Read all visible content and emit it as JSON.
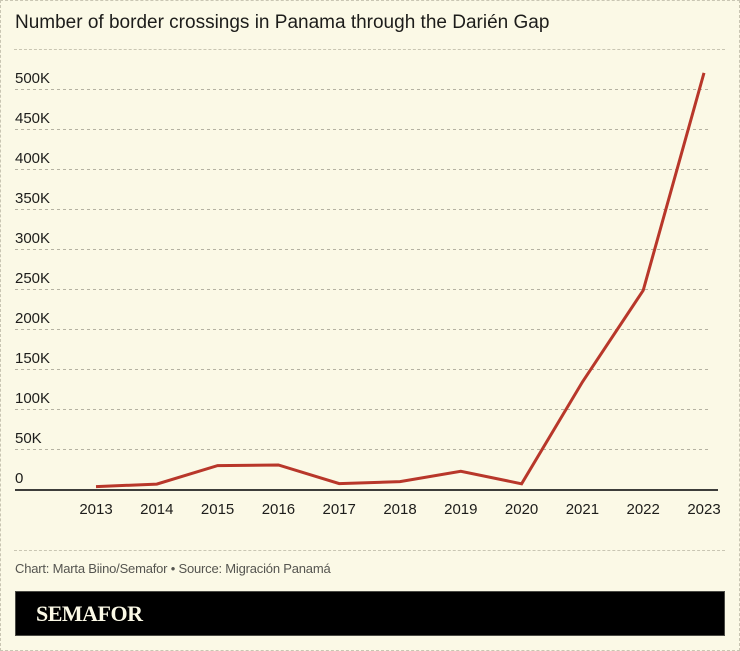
{
  "header": {
    "title": "Number of border crossings in Panama through the Darién Gap"
  },
  "footer": {
    "credit": "Chart: Marta Biino/Semafor • Source: Migración Panamá",
    "brand": "SEMAFOR"
  },
  "colors": {
    "line": "#b8372a",
    "background": "#fbf9e6",
    "grid": "#b5b2a2",
    "axis": "#3d3d3a",
    "text": "#1d1d1b"
  },
  "chart_data": {
    "type": "line",
    "title": "Number of border crossings in Panama through the Darién Gap",
    "xlabel": "",
    "ylabel": "",
    "x": [
      "2013",
      "2014",
      "2015",
      "2016",
      "2017",
      "2018",
      "2019",
      "2020",
      "2021",
      "2022",
      "2023"
    ],
    "series": [
      {
        "name": "Border crossings",
        "values": [
          3051,
          6175,
          29289,
          30055,
          6780,
          9222,
          22102,
          6465,
          133726,
          248284,
          520085
        ]
      }
    ],
    "ylim": [
      0,
      500000
    ],
    "yticks": [
      0,
      50000,
      100000,
      150000,
      200000,
      250000,
      300000,
      350000,
      400000,
      450000,
      500000
    ],
    "ytick_labels": [
      "0",
      "50K",
      "100K",
      "150K",
      "200K",
      "250K",
      "300K",
      "350K",
      "400K",
      "450K",
      "500K"
    ],
    "grid": true,
    "legend": "none"
  }
}
